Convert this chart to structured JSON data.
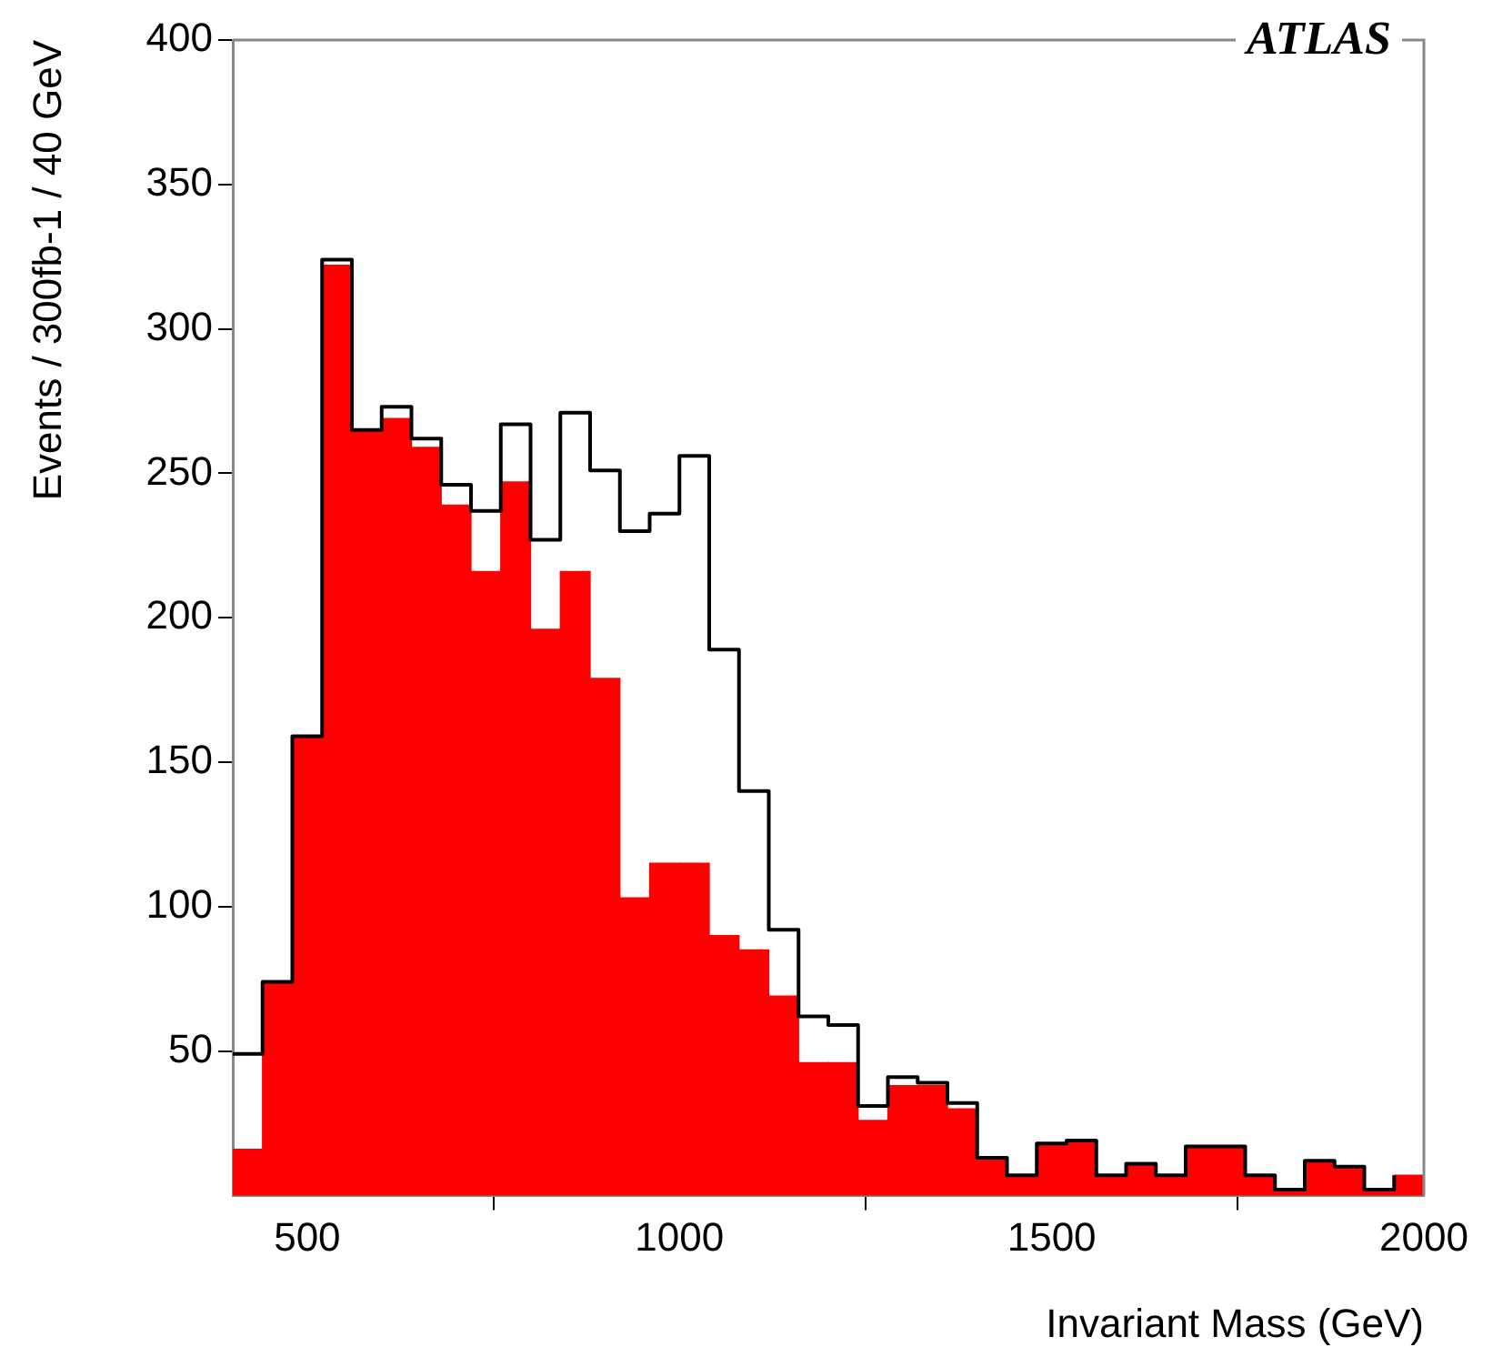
{
  "chart_data": {
    "type": "histogram",
    "xlabel": "Invariant Mass (GeV)",
    "ylabel": "Events / 300fb-1 / 40 GeV",
    "annotations": [
      "ATLAS"
    ],
    "bins": [
      400,
      440,
      480,
      520,
      560,
      600,
      640,
      680,
      720,
      760,
      800,
      840,
      880,
      920,
      960,
      1000,
      1040,
      1080,
      1120,
      1160,
      1200,
      1240,
      1280,
      1320,
      1360,
      1400,
      1440,
      1480,
      1520,
      1560,
      1600,
      1640,
      1680,
      1720,
      1760,
      1800,
      1840,
      1880,
      1920,
      1960,
      2000
    ],
    "series": [
      {
        "color": "#ff0000",
        "values": [
          16,
          74,
          159,
          322,
          265,
          269,
          259,
          239,
          216,
          247,
          196,
          216,
          179,
          103,
          115,
          115,
          90,
          85,
          69,
          46,
          46,
          26,
          38,
          38,
          30,
          13,
          7,
          18,
          19,
          7,
          11,
          7,
          17,
          17,
          7,
          2,
          12,
          10,
          2,
          7
        ]
      },
      {
        "type": "step",
        "color": "#000000",
        "x": [
          400,
          440,
          480,
          520,
          560,
          600,
          640,
          680,
          720,
          760,
          800,
          840,
          880,
          920,
          960,
          1000,
          1040,
          1080,
          1120,
          1160,
          1200,
          1240,
          1280,
          1320,
          1360,
          1400,
          1440,
          1480,
          1520,
          1560,
          1600,
          1640,
          1680,
          1720,
          1760,
          1800,
          1840,
          1880,
          1920,
          1960
        ],
        "values": [
          49,
          74,
          159,
          324,
          265,
          273,
          262,
          246,
          237,
          267,
          227,
          271,
          251,
          230,
          236,
          256,
          189,
          140,
          92,
          62,
          59,
          31,
          41,
          39,
          32,
          13,
          7,
          18,
          19,
          7,
          11,
          7,
          17,
          17,
          7,
          2,
          12,
          10,
          2,
          7
        ]
      }
    ],
    "xlim": [
      400,
      2000
    ],
    "xticks": [
      500,
      1000,
      1500,
      2000
    ],
    "ylim": [
      0,
      400
    ],
    "yticks": [
      50,
      100,
      150,
      200,
      250,
      300,
      350,
      400
    ]
  }
}
